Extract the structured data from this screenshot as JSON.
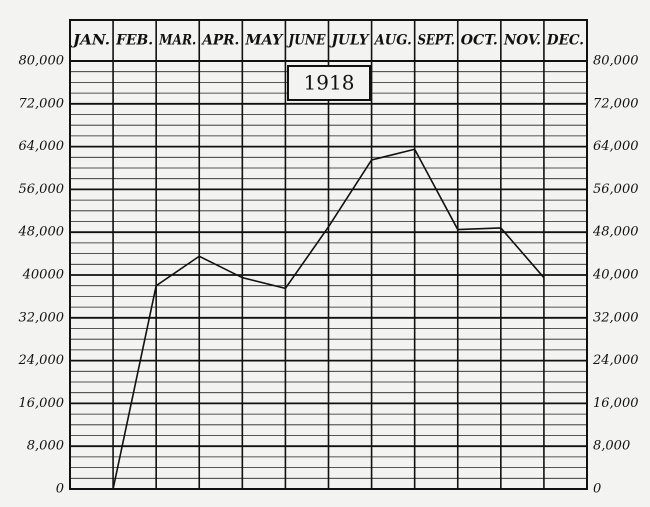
{
  "chart_data": {
    "type": "line",
    "title": "1918",
    "categories": [
      "JAN.",
      "FEB.",
      "MAR.",
      "APR.",
      "MAY",
      "JUNE",
      "JULY",
      "AUG.",
      "SEPT.",
      "OCT.",
      "NOV.",
      "DEC."
    ],
    "series": [
      {
        "name": "1918",
        "color": "#111111",
        "values": [
          null,
          0,
          38000,
          43500,
          39500,
          37500,
          49000,
          61500,
          63500,
          48500,
          48800,
          39500
        ]
      }
    ],
    "ylim": [
      0,
      80000
    ],
    "yticks": [
      {
        "value": 0,
        "label": "0"
      },
      {
        "value": 8000,
        "label": "8,000"
      },
      {
        "value": 16000,
        "label": "16,000"
      },
      {
        "value": 24000,
        "label": "24,000"
      },
      {
        "value": 32000,
        "label": "32,000"
      },
      {
        "value": 40000,
        "label": "40000"
      },
      {
        "value": 48000,
        "label": "48,000"
      },
      {
        "value": 56000,
        "label": "56,000"
      },
      {
        "value": 64000,
        "label": "64,000"
      },
      {
        "value": 72000,
        "label": "72,000"
      },
      {
        "value": 80000,
        "label": "80,000"
      }
    ],
    "y2lim": [
      0,
      80000
    ],
    "y2ticks": [
      {
        "value": 0,
        "label": "0"
      },
      {
        "value": 8000,
        "label": "8,000"
      },
      {
        "value": 16000,
        "label": "16,000"
      },
      {
        "value": 24000,
        "label": "24,000"
      },
      {
        "value": 32000,
        "label": "32,000"
      },
      {
        "value": 40000,
        "label": "40,000"
      },
      {
        "value": 48000,
        "label": "48,000"
      },
      {
        "value": 56000,
        "label": "56,000"
      },
      {
        "value": 64000,
        "label": "64,000"
      },
      {
        "value": 72000,
        "label": "72,000"
      },
      {
        "value": 80000,
        "label": "80,000"
      }
    ],
    "grid": true
  }
}
